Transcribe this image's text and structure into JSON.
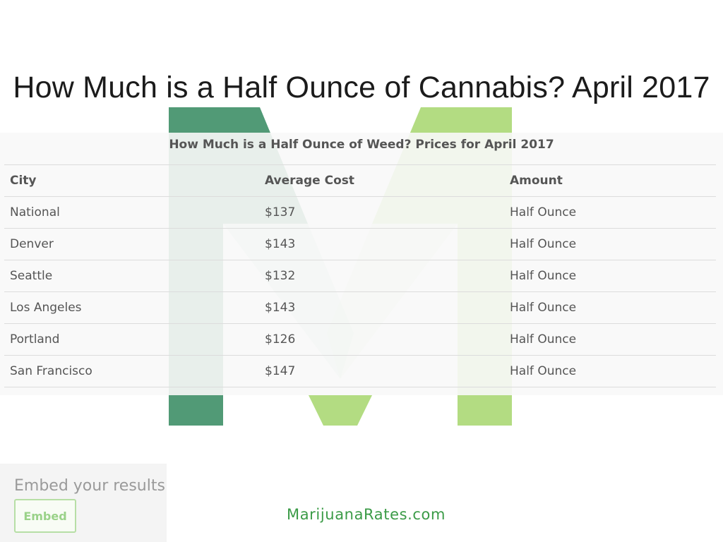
{
  "page": {
    "title": "How Much is a Half Ounce of Cannabis? April 2017"
  },
  "colors": {
    "logo_dark_green": "#519a76",
    "logo_light_green": "#b3dc82",
    "brand_green": "#3b9b47"
  },
  "table": {
    "caption": "How Much is a Half Ounce of Weed? Prices for April 2017",
    "columns": [
      "City",
      "Average Cost",
      "Amount"
    ],
    "rows": [
      [
        "National",
        "$137",
        "Half Ounce"
      ],
      [
        "Denver",
        "$143",
        "Half Ounce"
      ],
      [
        "Seattle",
        "$132",
        "Half Ounce"
      ],
      [
        "Los Angeles",
        "$143",
        "Half Ounce"
      ],
      [
        "Portland",
        "$126",
        "Half Ounce"
      ],
      [
        "San Francisco",
        "$147",
        "Half Ounce"
      ]
    ]
  },
  "embed": {
    "label": "Embed your results",
    "button_label": "Embed"
  },
  "footer": {
    "brand": "MarijuanaRates.com"
  }
}
